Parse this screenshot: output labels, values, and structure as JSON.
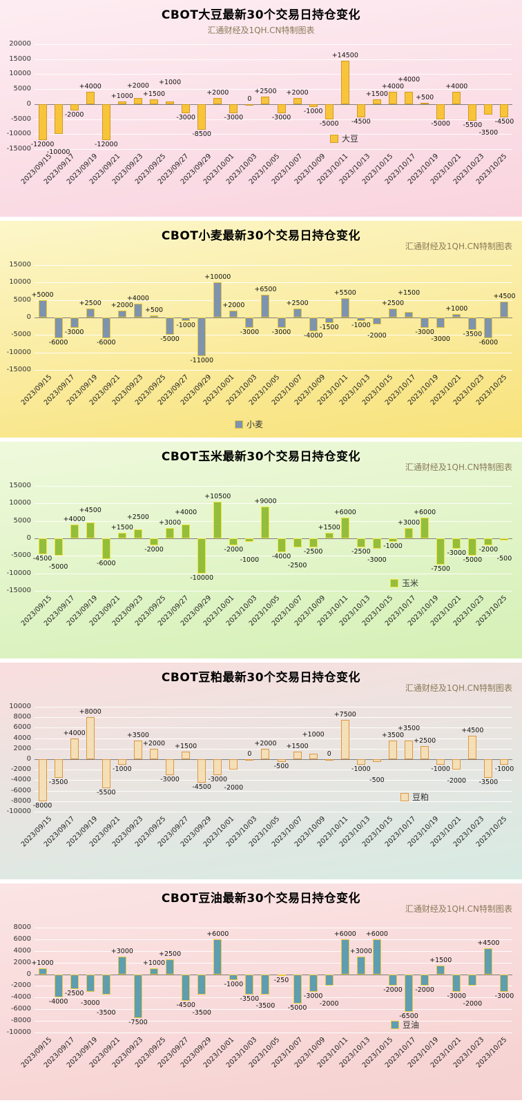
{
  "dates": [
    "2023/09/15",
    "2023/09/17",
    "2023/09/19",
    "2023/09/21",
    "2023/09/23",
    "2023/09/25",
    "2023/09/27",
    "2023/09/29",
    "2023/10/01",
    "2023/10/03",
    "2023/10/05",
    "2023/10/07",
    "2023/10/09",
    "2023/10/11",
    "2023/10/13",
    "2023/10/15",
    "2023/10/17",
    "2023/10/19",
    "2023/10/21",
    "2023/10/23",
    "2023/10/25"
  ],
  "chart_data": [
    {
      "type": "bar",
      "title": "CBOT大豆最新30个交易日持仓变化",
      "subtitle": "汇通财经及1QH.CN特制图表",
      "legend": "大豆",
      "legend_position": "inside-bottom-right",
      "subtitle_position": "center-below-title",
      "grid": true,
      "ylim": [
        -15000,
        20000
      ],
      "ytick_step": 5000,
      "colors": {
        "bar_fill": "#f8c43a",
        "bar_border": "#cf9a23",
        "bg_top": "#fdedf2",
        "bg_bottom": "#f9d4df"
      },
      "values": [
        -12000,
        -10000,
        -2000,
        4000,
        -12000,
        1000,
        2000,
        1500,
        1000,
        -3000,
        -8500,
        2000,
        -3000,
        0,
        2500,
        -3000,
        2000,
        -1000,
        -5000,
        14500,
        -4500,
        1500,
        4000,
        4000,
        500,
        -5000,
        4000,
        -5500,
        -3500,
        -4500
      ]
    },
    {
      "type": "bar",
      "title": "CBOT小麦最新30个交易日持仓变化",
      "subtitle": "汇通财经及1QH.CN特制图表",
      "legend": "小麦",
      "legend_position": "bottom-center",
      "subtitle_position": "top-right",
      "grid": true,
      "ylim": [
        -15000,
        15000
      ],
      "ytick_step": 5000,
      "colors": {
        "bar_fill": "#7e93ad",
        "bar_border": "#e3c33c",
        "bg_top": "#fcf6c9",
        "bg_bottom": "#f8e27a"
      },
      "values": [
        5000,
        -6000,
        -3000,
        2500,
        -6000,
        2000,
        4000,
        500,
        -5000,
        -1000,
        -11000,
        10000,
        2000,
        -3000,
        6500,
        -3000,
        2500,
        -4000,
        -1500,
        5500,
        -1000,
        -2000,
        2500,
        1500,
        -3000,
        -3000,
        1000,
        -3500,
        -6000,
        4500
      ]
    },
    {
      "type": "bar",
      "title": "CBOT玉米最新30个交易日持仓变化",
      "subtitle": "汇通财经及1QH.CN特制图表",
      "legend": "玉米",
      "legend_position": "inside-bottom-right",
      "subtitle_position": "top-right",
      "grid": true,
      "ylim": [
        -15000,
        15000
      ],
      "ytick_step": 5000,
      "colors": {
        "bar_fill": "#92be3c",
        "bar_border": "#f2e23c",
        "bg_top": "#eff9dc",
        "bg_bottom": "#d5f0b6"
      },
      "values": [
        -4500,
        -5000,
        4000,
        4500,
        -6000,
        1500,
        2500,
        -2000,
        3000,
        4000,
        -10000,
        10500,
        -2000,
        -1000,
        9000,
        -4000,
        -2500,
        -2500,
        1500,
        6000,
        -2500,
        -3000,
        -1000,
        3000,
        6000,
        -7500,
        -3000,
        -5000,
        -2000,
        -500
      ]
    },
    {
      "type": "bar",
      "title": "CBOT豆粕最新30个交易日持仓变化",
      "subtitle": "汇通财经及1QH.CN特制图表",
      "legend": "豆粕",
      "legend_position": "inside-bottom-right",
      "subtitle_position": "top-right",
      "grid": true,
      "ylim": [
        -10000,
        10000
      ],
      "ytick_step": 2000,
      "colors": {
        "bar_fill": "#f4dfb7",
        "bar_border": "#dd9640",
        "bg_top": "#f9dede",
        "bg_bottom": "#d7ebe3"
      },
      "values": [
        -8000,
        -3500,
        4000,
        8000,
        -5500,
        -1000,
        3500,
        2000,
        -3000,
        1500,
        -4500,
        -3000,
        -2000,
        0,
        2000,
        -500,
        1500,
        1000,
        0,
        7500,
        -1000,
        -500,
        3500,
        3500,
        2500,
        -1000,
        -2000,
        4500,
        -3500,
        -1000
      ]
    },
    {
      "type": "bar",
      "title": "CBOT豆油最新30个交易日持仓变化",
      "subtitle": "汇通财经及1QH.CN特制图表",
      "legend": "豆油",
      "legend_position": "inside-bottom-right",
      "subtitle_position": "top-right",
      "grid": true,
      "ylim": [
        -10000,
        8000
      ],
      "ytick_step": 2000,
      "colors": {
        "bar_fill": "#5f9db0",
        "bar_border": "#e8c93f",
        "bg_top": "#fbe4e4",
        "bg_bottom": "#f6d1d1"
      },
      "values": [
        1000,
        -4000,
        -2500,
        -3000,
        -3500,
        3000,
        -7500,
        1000,
        2500,
        -4500,
        -3500,
        6000,
        -1000,
        -3500,
        -3500,
        -250,
        -5000,
        -3000,
        -2000,
        6000,
        3000,
        6000,
        -2000,
        -6500,
        -2000,
        1500,
        -3000,
        -2000,
        4500,
        -3000
      ]
    }
  ]
}
